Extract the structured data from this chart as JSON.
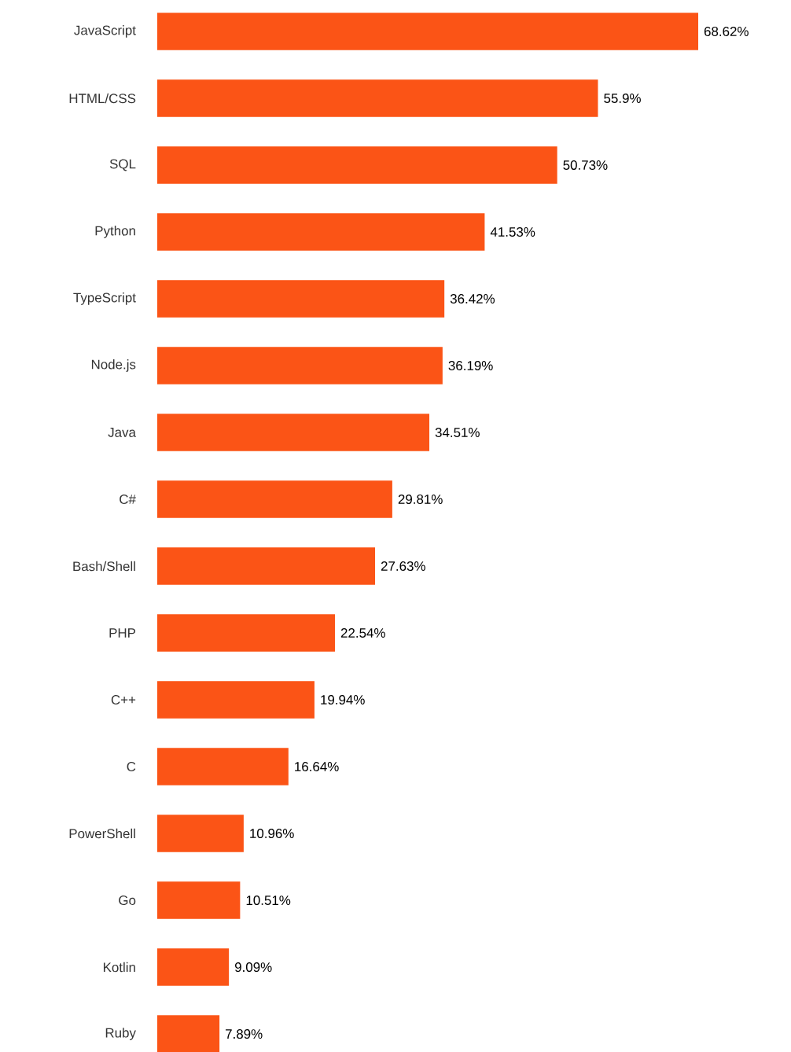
{
  "chart_data": {
    "type": "bar",
    "orientation": "horizontal",
    "color": "#fb5416",
    "categories": [
      "JavaScript",
      "HTML/CSS",
      "SQL",
      "Python",
      "TypeScript",
      "Node.js",
      "Java",
      "C#",
      "Bash/Shell",
      "PHP",
      "C++",
      "C",
      "PowerShell",
      "Go",
      "Kotlin",
      "Ruby"
    ],
    "values": [
      68.62,
      55.9,
      50.73,
      41.53,
      36.42,
      36.19,
      34.51,
      29.81,
      27.63,
      22.54,
      19.94,
      16.64,
      10.96,
      10.51,
      9.09,
      7.89
    ],
    "value_labels": [
      "68.62%",
      "55.9%",
      "50.73%",
      "41.53%",
      "36.42%",
      "36.19%",
      "34.51%",
      "29.81%",
      "27.63%",
      "22.54%",
      "19.94%",
      "16.64%",
      "10.96%",
      "10.51%",
      "9.09%",
      "7.89%"
    ]
  }
}
